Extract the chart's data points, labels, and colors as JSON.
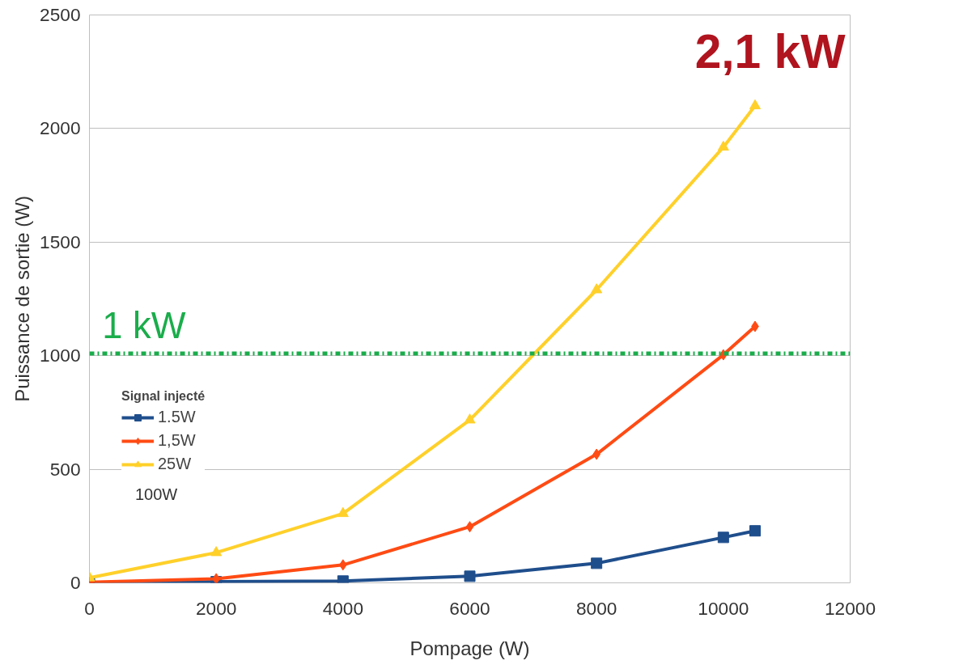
{
  "chart_data": {
    "type": "line",
    "xlabel": "Pompage (W)",
    "ylabel": "Puissance de sortie (W)",
    "legend_title": "Signal injecté",
    "x": [
      0,
      2000,
      4000,
      6000,
      8000,
      10000,
      10500
    ],
    "series": [
      {
        "name": "1.5W",
        "color": "#1f4e8c",
        "marker": "square",
        "values": [
          0,
          5,
          8,
          29,
          86,
          200,
          229
        ]
      },
      {
        "name": "1,5W",
        "color": "#ff4b14",
        "marker": "diamond",
        "values": [
          3,
          18,
          79,
          247,
          566,
          1004,
          1129
        ]
      },
      {
        "name": "25W",
        "color": "#ffd02a",
        "marker": "triangle",
        "values": [
          22,
          133,
          305,
          717,
          1290,
          1918,
          2100
        ]
      }
    ],
    "xlim": [
      0,
      12000
    ],
    "xticks": [
      0,
      2000,
      4000,
      6000,
      8000,
      10000,
      12000
    ],
    "ylim": [
      0,
      2500
    ],
    "yticks": [
      0,
      500,
      1000,
      1500,
      2000,
      2500
    ],
    "grid": "y",
    "legend": "left",
    "ref_lines": [
      {
        "axis": "y",
        "value": 1010,
        "label": "1 kW",
        "color": "#1aad4b",
        "line_style": "dashdot"
      }
    ],
    "annotations": [
      "2,1 kW",
      "100W"
    ]
  }
}
